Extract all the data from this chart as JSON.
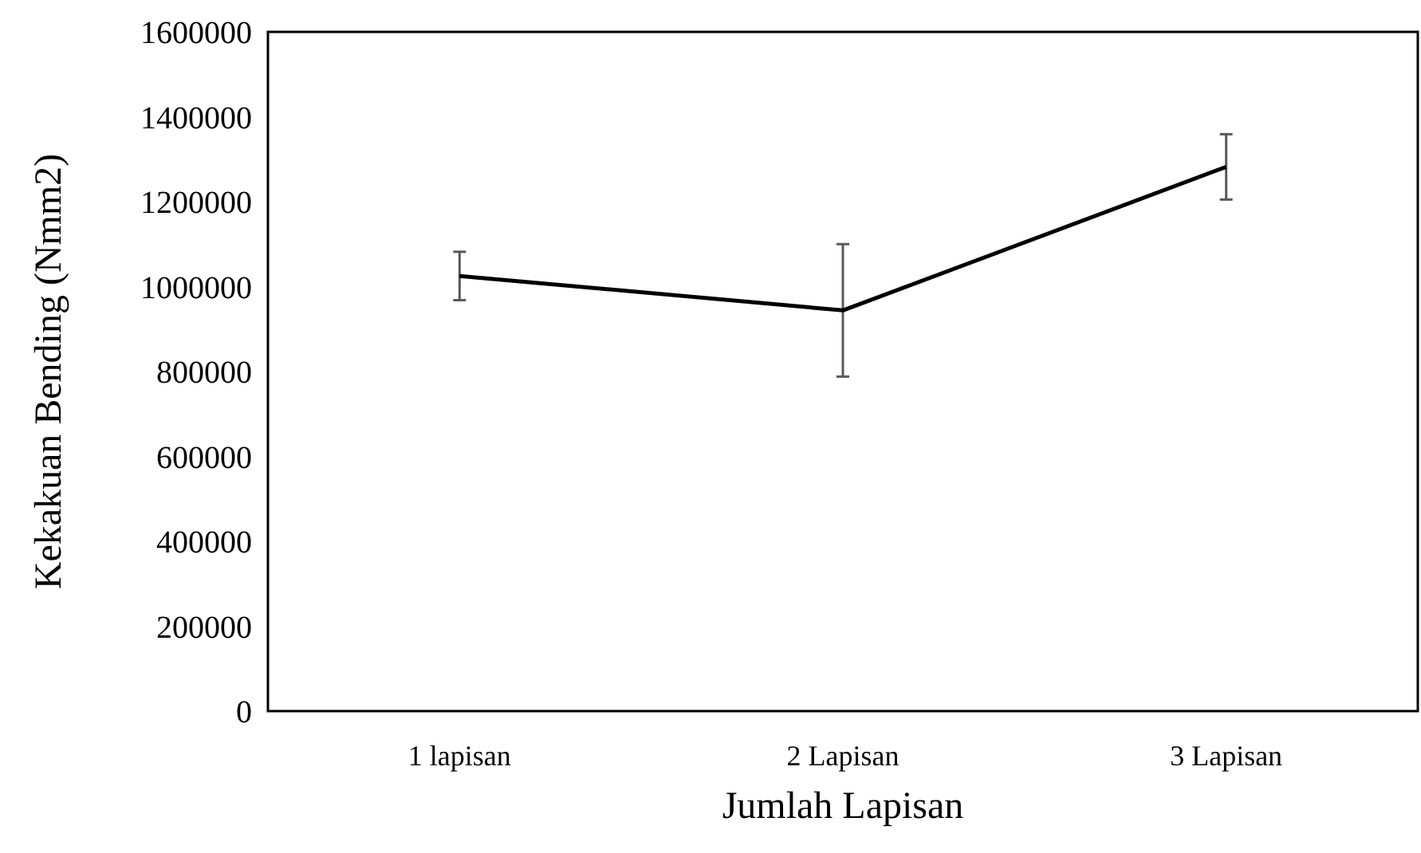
{
  "chart_data": {
    "type": "line",
    "xlabel": "Jumlah Lapisan",
    "ylabel": "Kekakuan Bending (Nmm2)",
    "categories": [
      "1 lapisan",
      "2 Lapisan",
      "3 Lapisan"
    ],
    "series": [
      {
        "color": "#000000",
        "values": [
          1025000,
          944000,
          1282000
        ],
        "errors": [
          57000,
          156000,
          77000
        ]
      }
    ],
    "ylim": [
      0,
      1600000
    ],
    "yticks": [
      0,
      200000,
      400000,
      600000,
      800000,
      1000000,
      1200000,
      1400000,
      1600000
    ],
    "grid": false,
    "marker": "none",
    "line_style": "solid"
  }
}
